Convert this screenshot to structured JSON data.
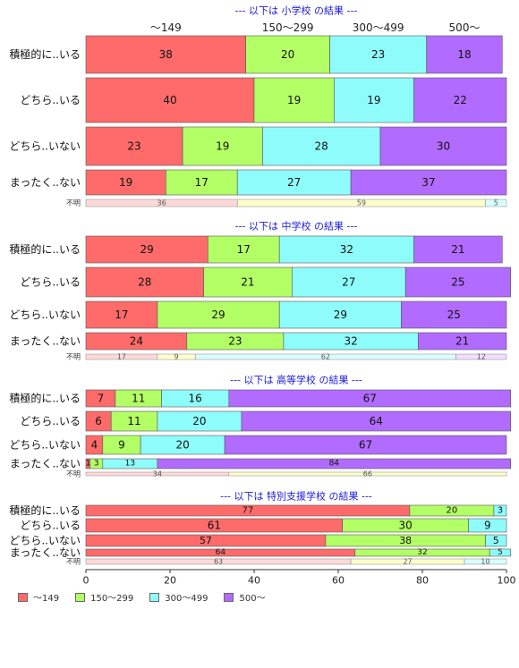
{
  "chart_data": {
    "type": "bar",
    "orientation": "horizontal",
    "stacked": true,
    "xlim": [
      0,
      100
    ],
    "xticks": [
      "0",
      "20",
      "40",
      "60",
      "80",
      "100"
    ],
    "colors": {
      "~149": "#ff6b6b",
      "150~299": "#b3ff66",
      "300~499": "#8ffcfc",
      "500~": "#b26bff",
      "unknown_light": [
        "#ffd9d9",
        "#ffffcc",
        "#d9ffff",
        "#f3dcff"
      ]
    },
    "column_headers": [
      "～149",
      "150～299",
      "300～499",
      "500～"
    ],
    "legend": [
      "～149",
      "150～299",
      "300～499",
      "500～"
    ],
    "panels": [
      {
        "title": "--- 以下は 小学校 の結果 ---",
        "show_headers": true,
        "rows": [
          {
            "label": "積極的に..いる",
            "values": [
              38,
              20,
              23,
              18
            ]
          },
          {
            "label": "どちら..いる",
            "values": [
              40,
              19,
              19,
              22
            ]
          },
          {
            "label": "どちら..いない",
            "values": [
              23,
              19,
              28,
              30
            ]
          },
          {
            "label": "まったく..ない",
            "values": [
              19,
              17,
              27,
              37
            ]
          }
        ],
        "unknown": {
          "label": "不明",
          "values": [
            36,
            59,
            5
          ]
        }
      },
      {
        "title": "--- 以下は 中学校 の結果 ---",
        "show_headers": false,
        "rows": [
          {
            "label": "積極的に..いる",
            "values": [
              29,
              17,
              32,
              21
            ]
          },
          {
            "label": "どちら..いる",
            "values": [
              28,
              21,
              27,
              25
            ]
          },
          {
            "label": "どちら..いない",
            "values": [
              17,
              29,
              29,
              25
            ]
          },
          {
            "label": "まったく..ない",
            "values": [
              24,
              23,
              32,
              21
            ]
          }
        ],
        "unknown": {
          "label": "不明",
          "values": [
            17,
            9,
            62,
            12
          ]
        }
      },
      {
        "title": "--- 以下は 高等学校 の結果 ---",
        "show_headers": false,
        "rows": [
          {
            "label": "積極的に..いる",
            "values": [
              7,
              11,
              16,
              67
            ]
          },
          {
            "label": "どちら..いる",
            "values": [
              6,
              11,
              20,
              64
            ]
          },
          {
            "label": "どちら..いない",
            "values": [
              4,
              9,
              20,
              67
            ]
          },
          {
            "label": "まったく..ない",
            "values": [
              1,
              3,
              13,
              84
            ]
          }
        ],
        "unknown": {
          "label": "不明",
          "values": [
            34,
            66
          ]
        }
      },
      {
        "title": "--- 以下は 特別支援学校 の結果 ---",
        "show_headers": false,
        "rows": [
          {
            "label": "積極的に..いる",
            "values": [
              77,
              20,
              3
            ]
          },
          {
            "label": "どちら..いる",
            "values": [
              61,
              30,
              9
            ]
          },
          {
            "label": "どちら..いない",
            "values": [
              57,
              38,
              5
            ]
          },
          {
            "label": "まったく..ない",
            "values": [
              64,
              32,
              5
            ]
          }
        ],
        "unknown": {
          "label": "不明",
          "values": [
            63,
            27,
            10
          ]
        }
      }
    ]
  }
}
